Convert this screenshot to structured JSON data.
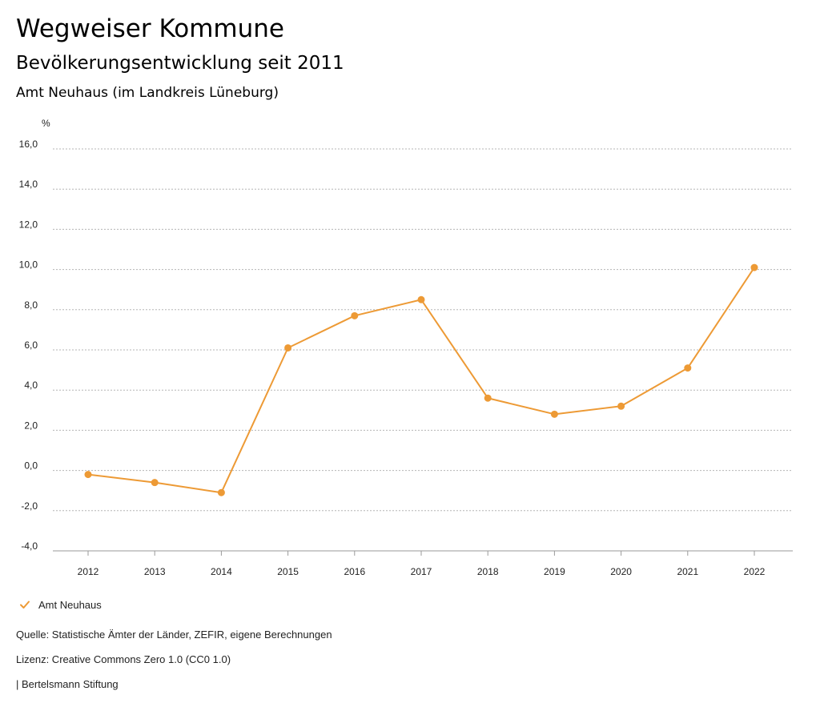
{
  "header": {
    "title": "Wegweiser Kommune",
    "subtitle": "Bevölkerungsentwicklung seit 2011",
    "region": "Amt Neuhaus (im Landkreis Lüneburg)"
  },
  "chart_data": {
    "type": "line",
    "title": "Bevölkerungsentwicklung seit 2011",
    "xlabel": "",
    "ylabel": "%",
    "categories": [
      "2012",
      "2013",
      "2014",
      "2015",
      "2016",
      "2017",
      "2018",
      "2019",
      "2020",
      "2021",
      "2022"
    ],
    "series": [
      {
        "name": "Amt Neuhaus",
        "color": "#ED9A35",
        "values": [
          -0.2,
          -0.6,
          -1.1,
          6.1,
          7.7,
          8.5,
          3.6,
          2.8,
          3.2,
          5.1,
          10.1
        ]
      }
    ],
    "ylim": [
      -4,
      16
    ],
    "yticks": [
      -4,
      -2,
      0,
      2,
      4,
      6,
      8,
      10,
      12,
      14,
      16
    ],
    "ytick_labels": [
      "-4,0",
      "-2,0",
      "0,0",
      "2,0",
      "4,0",
      "6,0",
      "8,0",
      "10,0",
      "12,0",
      "14,0",
      "16,0"
    ],
    "grid": true,
    "legend": "bottom-left"
  },
  "legend": {
    "label": "Amt Neuhaus",
    "icon": "check-icon",
    "color": "#ED9A35"
  },
  "footer": {
    "source": "Quelle: Statistische Ämter der Länder, ZEFIR, eigene Berechnungen",
    "license": "Lizenz: Creative Commons Zero 1.0 (CC0 1.0)",
    "publisher": "| Bertelsmann Stiftung"
  }
}
